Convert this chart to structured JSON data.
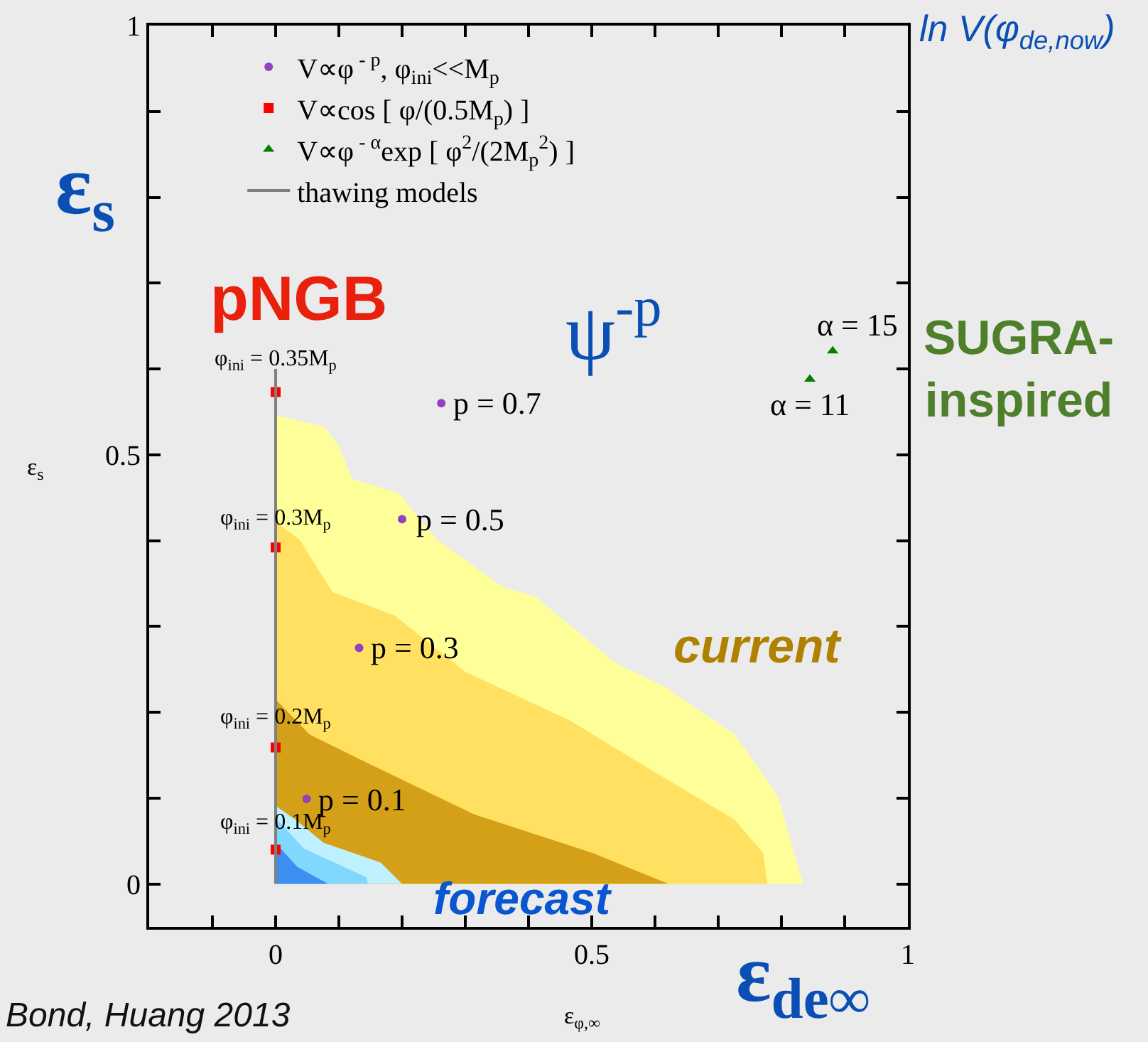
{
  "chart_data": {
    "type": "scatter",
    "xlabel": "ε$_{φ,∞}$",
    "ylabel": "ε$_{s}$",
    "xlim": [
      -0.2,
      1
    ],
    "ylim": [
      -0.05,
      1
    ],
    "xticks": [
      {
        "value": -0.1,
        "label": null
      },
      0,
      {
        "value": 0.1,
        "label": null
      },
      {
        "value": 0.2,
        "label": null
      },
      {
        "value": 0.3,
        "label": null
      },
      {
        "value": 0.4,
        "label": null
      },
      0.5,
      {
        "value": 0.6,
        "label": null
      },
      {
        "value": 0.7,
        "label": null
      },
      {
        "value": 0.8,
        "label": null
      },
      {
        "value": 0.9,
        "label": null
      },
      1
    ],
    "yticks": [
      0,
      {
        "value": 0.1,
        "label": null
      },
      {
        "value": 0.2,
        "label": null
      },
      {
        "value": 0.3,
        "label": null
      },
      {
        "value": 0.4,
        "label": null
      },
      0.5,
      {
        "value": 0.6,
        "label": null
      },
      {
        "value": 0.7,
        "label": null
      },
      {
        "value": 0.8,
        "label": null
      },
      {
        "value": 0.9,
        "label": null
      },
      1
    ],
    "grid": false,
    "legend": "top",
    "series": [
      {
        "type": "area",
        "color": "#ffff99",
        "x": [
          0,
          0.076,
          0.099,
          0.121,
          0.195,
          0.255,
          0.359,
          0.412,
          0.538,
          0.614,
          0.726,
          0.794,
          0.834
        ],
        "values": [
          0.546,
          0.533,
          0.512,
          0.472,
          0.455,
          0.401,
          0.346,
          0.334,
          0.257,
          0.23,
          0.174,
          0.103,
          0
        ]
      },
      {
        "type": "area",
        "color": "#ffe060",
        "x": [
          0,
          0.038,
          0.09,
          0.188,
          0.3,
          0.464,
          0.614,
          0.726,
          0.771,
          0.778
        ],
        "values": [
          0.422,
          0.401,
          0.34,
          0.313,
          0.247,
          0.191,
          0.124,
          0.075,
          0.036,
          0
        ]
      },
      {
        "type": "area",
        "color": "#d4a017",
        "x": [
          0,
          0.054,
          0.128,
          0.314,
          0.502,
          0.621
        ],
        "values": [
          0.215,
          0.174,
          0.147,
          0.081,
          0.036,
          0
        ]
      },
      {
        "type": "area",
        "color": "#bff0ff",
        "x": [
          0,
          0.031,
          0.076,
          0.166,
          0.2
        ],
        "values": [
          0.091,
          0.075,
          0.048,
          0.025,
          0
        ]
      },
      {
        "type": "area",
        "color": "#80d8ff",
        "x": [
          0,
          0.045,
          0.143,
          0.146
        ],
        "values": [
          0.077,
          0.041,
          0.008,
          0
        ]
      },
      {
        "type": "area",
        "color": "#3d8ef0",
        "x": [
          0,
          0.034,
          0.083
        ],
        "values": [
          0.048,
          0.02,
          0
        ]
      },
      {
        "name": "V∝φ$^{ - p}$, φ$_{ini}$<<M$_{p}$",
        "color": "#9040c0",
        "marker": "circle",
        "x": [
          0.262,
          0.2,
          0.132,
          0.049
        ],
        "values": [
          0.56,
          0.425,
          0.275,
          0.099
        ]
      },
      {
        "name": "V∝cos [ φ/(0.5M$_{p}$) ]",
        "color": "#ff0000",
        "marker": "square",
        "x": [
          0,
          0,
          0,
          0
        ],
        "values": [
          0.573,
          0.392,
          0.159,
          0.04
        ]
      },
      {
        "name": "V∝φ$^{ - α}$exp [ φ$^{2}$/(2M$_{p}$$^{2}$) ]",
        "color": "#008000",
        "marker": "triangle",
        "x": [
          0.881,
          0.845
        ],
        "values": [
          0.621,
          0.588
        ]
      },
      {
        "type": "line",
        "name": "thawing models",
        "color": "#808080",
        "line_style": "solid",
        "marker": "none",
        "x": [
          0,
          0
        ],
        "values": [
          0,
          0.6
        ]
      }
    ],
    "annotations": [
      "ln V(φ$_{de,now}$)",
      "ε$_{s}$",
      "pNGB",
      "ψ$^{-p}$",
      "SUGRA-\ninspired",
      "current",
      "forecast",
      "ε$_{de∞}$",
      "Bond, Huang 2013",
      {
        "text": "p = 0.7",
        "x": 0.262,
        "y": 0.56
      },
      {
        "text": "p = 0.5",
        "x": 0.2,
        "y": 0.425
      },
      {
        "text": "p = 0.3",
        "x": 0.132,
        "y": 0.275
      },
      {
        "text": "p = 0.1",
        "x": 0.049,
        "y": 0.099
      },
      {
        "text": "α = 15",
        "x": 0.881,
        "y": 0.621
      },
      {
        "text": "α = 11",
        "x": 0.845,
        "y": 0.588
      },
      {
        "text": "φ$_{ini}$ = 0.35M$_{p}$",
        "x": 0,
        "y": 0.573
      },
      {
        "text": "φ$_{ini}$ = 0.3M$_{p}$",
        "x": 0,
        "y": 0.392
      },
      {
        "text": "φ$_{ini}$ = 0.2M$_{p}$",
        "x": 0,
        "y": 0.159
      },
      {
        "text": "φ$_{ini}$ = 0.1M$_{p}$",
        "x": 0,
        "y": 0.04
      }
    ]
  }
}
